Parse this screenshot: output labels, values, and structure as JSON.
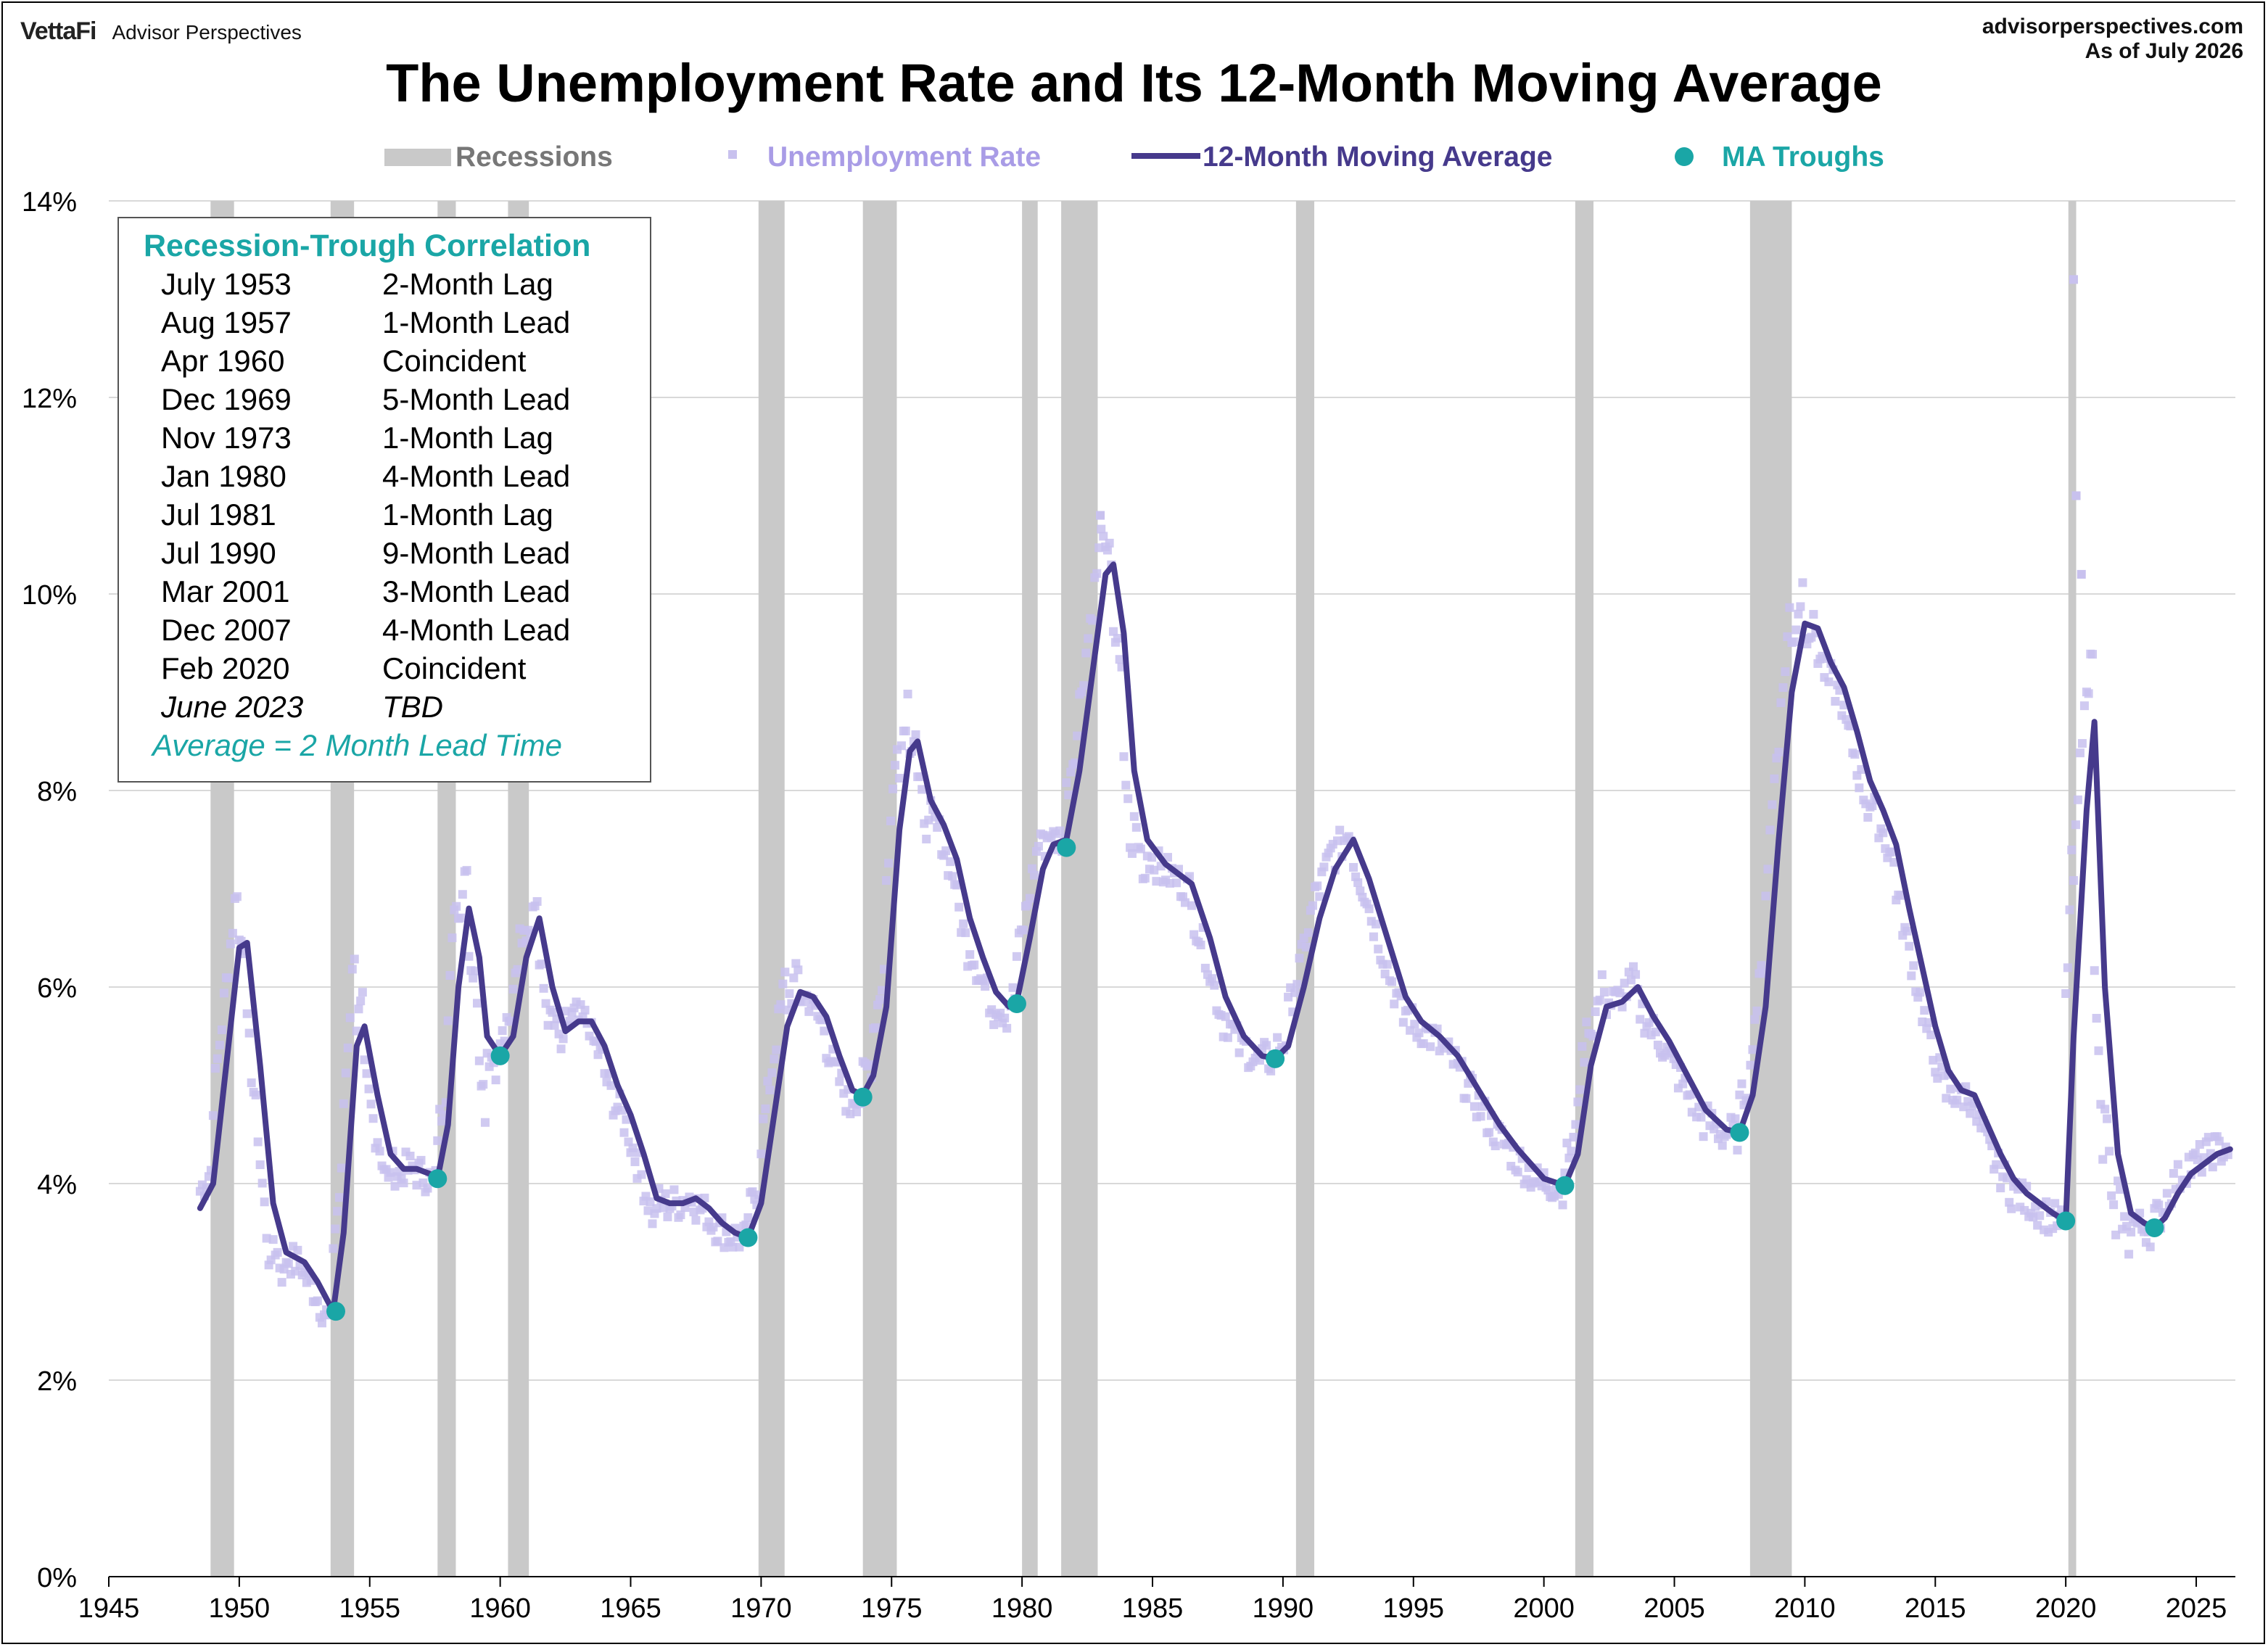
{
  "header": {
    "brand": "VettaFi",
    "brand_sub": "Advisor Perspectives",
    "site": "advisorperspectives.com",
    "as_of": "As of July 2026",
    "title": "The Unemployment Rate and Its 12-Month Moving Average"
  },
  "legend": {
    "recessions": "Recessions",
    "unemployment": "Unemployment Rate",
    "moving_average": "12-Month Moving Average",
    "troughs": "MA Troughs"
  },
  "colors": {
    "recession": "#c9c9c9",
    "unemployment": "#c8c1ee",
    "moving_average": "#463a8c",
    "trough": "#1aa6a6",
    "legend_recession_text": "#777777",
    "legend_unemployment_text": "#a99ce6",
    "grid": "#d9d9d9"
  },
  "inset": {
    "title": "Recession-Trough Correlation",
    "rows": [
      {
        "date": "July 1953",
        "relation": "2-Month Lag"
      },
      {
        "date": "Aug 1957",
        "relation": "1-Month Lead"
      },
      {
        "date": "Apr 1960",
        "relation": "Coincident"
      },
      {
        "date": "Dec 1969",
        "relation": "5-Month Lead"
      },
      {
        "date": "Nov 1973",
        "relation": "1-Month Lag"
      },
      {
        "date": "Jan 1980",
        "relation": "4-Month Lead"
      },
      {
        "date": "Jul 1981",
        "relation": "1-Month Lag"
      },
      {
        "date": "Jul 1990",
        "relation": "9-Month Lead"
      },
      {
        "date": "Mar 2001",
        "relation": "3-Month Lead"
      },
      {
        "date": "Dec 2007",
        "relation": "4-Month Lead"
      },
      {
        "date": "Feb 2020",
        "relation": "Coincident"
      },
      {
        "date": "June 2023",
        "relation": "TBD"
      }
    ],
    "footer": "Average = 2 Month Lead Time"
  },
  "chart_data": {
    "type": "line",
    "title": "The Unemployment Rate and Its 12-Month Moving Average",
    "xlabel": "",
    "ylabel": "",
    "xlim": [
      1945,
      2026.5
    ],
    "ylim": [
      0,
      14
    ],
    "x_ticks": [
      "1945",
      "1950",
      "1955",
      "1960",
      "1965",
      "1970",
      "1975",
      "1980",
      "1985",
      "1990",
      "1995",
      "2000",
      "2005",
      "2010",
      "2015",
      "2020",
      "2025"
    ],
    "y_ticks": [
      "0%",
      "2%",
      "4%",
      "6%",
      "8%",
      "10%",
      "12%",
      "14%"
    ],
    "grid": "horizontal",
    "legend_position": "top",
    "recessions": [
      [
        1948.9,
        1949.8
      ],
      [
        1953.5,
        1954.4
      ],
      [
        1957.6,
        1958.3
      ],
      [
        1960.3,
        1961.1
      ],
      [
        1969.9,
        1970.9
      ],
      [
        1973.9,
        1975.2
      ],
      [
        1980.0,
        1980.6
      ],
      [
        1981.5,
        1982.9
      ],
      [
        1990.5,
        1991.2
      ],
      [
        2001.2,
        2001.9
      ],
      [
        2007.9,
        2009.5
      ],
      [
        2020.1,
        2020.4
      ]
    ],
    "series": [
      {
        "name": "12-Month Moving Average",
        "points": [
          [
            1948.5,
            3.75
          ],
          [
            1949.0,
            4.0
          ],
          [
            1949.5,
            5.2
          ],
          [
            1950.0,
            6.4
          ],
          [
            1950.3,
            6.45
          ],
          [
            1950.8,
            5.2
          ],
          [
            1951.3,
            3.8
          ],
          [
            1951.8,
            3.3
          ],
          [
            1952.5,
            3.2
          ],
          [
            1953.0,
            3.0
          ],
          [
            1953.6,
            2.7
          ],
          [
            1954.0,
            3.5
          ],
          [
            1954.5,
            5.4
          ],
          [
            1954.8,
            5.6
          ],
          [
            1955.3,
            4.9
          ],
          [
            1955.8,
            4.3
          ],
          [
            1956.3,
            4.15
          ],
          [
            1956.8,
            4.15
          ],
          [
            1957.3,
            4.1
          ],
          [
            1957.6,
            4.05
          ],
          [
            1958.0,
            4.6
          ],
          [
            1958.4,
            6.0
          ],
          [
            1958.8,
            6.8
          ],
          [
            1959.2,
            6.3
          ],
          [
            1959.5,
            5.5
          ],
          [
            1960.0,
            5.3
          ],
          [
            1960.5,
            5.5
          ],
          [
            1961.0,
            6.3
          ],
          [
            1961.5,
            6.7
          ],
          [
            1962.0,
            6.0
          ],
          [
            1962.5,
            5.55
          ],
          [
            1963.0,
            5.65
          ],
          [
            1963.5,
            5.65
          ],
          [
            1964.0,
            5.4
          ],
          [
            1964.5,
            5.0
          ],
          [
            1965.0,
            4.7
          ],
          [
            1965.5,
            4.3
          ],
          [
            1966.0,
            3.85
          ],
          [
            1966.5,
            3.8
          ],
          [
            1967.0,
            3.8
          ],
          [
            1967.5,
            3.85
          ],
          [
            1968.0,
            3.75
          ],
          [
            1968.5,
            3.6
          ],
          [
            1969.0,
            3.5
          ],
          [
            1969.5,
            3.45
          ],
          [
            1970.0,
            3.8
          ],
          [
            1970.5,
            4.7
          ],
          [
            1971.0,
            5.6
          ],
          [
            1971.5,
            5.95
          ],
          [
            1972.0,
            5.9
          ],
          [
            1972.5,
            5.7
          ],
          [
            1973.0,
            5.3
          ],
          [
            1973.5,
            4.95
          ],
          [
            1973.9,
            4.9
          ],
          [
            1974.3,
            5.1
          ],
          [
            1974.8,
            5.8
          ],
          [
            1975.3,
            7.6
          ],
          [
            1975.7,
            8.4
          ],
          [
            1976.0,
            8.5
          ],
          [
            1976.5,
            7.9
          ],
          [
            1977.0,
            7.65
          ],
          [
            1977.5,
            7.3
          ],
          [
            1978.0,
            6.7
          ],
          [
            1978.5,
            6.3
          ],
          [
            1979.0,
            5.95
          ],
          [
            1979.5,
            5.8
          ],
          [
            1979.8,
            5.85
          ],
          [
            1980.3,
            6.5
          ],
          [
            1980.8,
            7.2
          ],
          [
            1981.2,
            7.45
          ],
          [
            1981.7,
            7.5
          ],
          [
            1982.2,
            8.2
          ],
          [
            1982.7,
            9.2
          ],
          [
            1983.2,
            10.2
          ],
          [
            1983.5,
            10.3
          ],
          [
            1983.9,
            9.6
          ],
          [
            1984.3,
            8.2
          ],
          [
            1984.8,
            7.5
          ],
          [
            1985.5,
            7.25
          ],
          [
            1986.5,
            7.05
          ],
          [
            1987.2,
            6.5
          ],
          [
            1987.8,
            5.9
          ],
          [
            1988.5,
            5.5
          ],
          [
            1989.2,
            5.3
          ],
          [
            1989.7,
            5.27
          ],
          [
            1990.2,
            5.4
          ],
          [
            1990.8,
            6.0
          ],
          [
            1991.4,
            6.7
          ],
          [
            1992.0,
            7.2
          ],
          [
            1992.7,
            7.5
          ],
          [
            1993.3,
            7.1
          ],
          [
            1994.0,
            6.5
          ],
          [
            1994.7,
            5.9
          ],
          [
            1995.3,
            5.65
          ],
          [
            1996.0,
            5.5
          ],
          [
            1996.7,
            5.3
          ],
          [
            1997.5,
            4.95
          ],
          [
            1998.3,
            4.6
          ],
          [
            1999.0,
            4.35
          ],
          [
            2000.0,
            4.05
          ],
          [
            2000.8,
            3.98
          ],
          [
            2001.3,
            4.3
          ],
          [
            2001.8,
            5.2
          ],
          [
            2002.4,
            5.8
          ],
          [
            2003.0,
            5.85
          ],
          [
            2003.6,
            6.0
          ],
          [
            2004.2,
            5.7
          ],
          [
            2004.8,
            5.45
          ],
          [
            2005.5,
            5.1
          ],
          [
            2006.2,
            4.75
          ],
          [
            2007.0,
            4.55
          ],
          [
            2007.5,
            4.52
          ],
          [
            2008.0,
            4.9
          ],
          [
            2008.5,
            5.8
          ],
          [
            2009.0,
            7.5
          ],
          [
            2009.5,
            9.0
          ],
          [
            2010.0,
            9.7
          ],
          [
            2010.5,
            9.65
          ],
          [
            2011.0,
            9.3
          ],
          [
            2011.5,
            9.05
          ],
          [
            2012.0,
            8.6
          ],
          [
            2012.5,
            8.1
          ],
          [
            2013.0,
            7.8
          ],
          [
            2013.5,
            7.45
          ],
          [
            2014.0,
            6.8
          ],
          [
            2014.5,
            6.2
          ],
          [
            2015.0,
            5.6
          ],
          [
            2015.5,
            5.15
          ],
          [
            2016.0,
            4.95
          ],
          [
            2016.5,
            4.9
          ],
          [
            2017.0,
            4.6
          ],
          [
            2017.5,
            4.3
          ],
          [
            2018.0,
            4.05
          ],
          [
            2018.5,
            3.9
          ],
          [
            2019.0,
            3.8
          ],
          [
            2019.5,
            3.7
          ],
          [
            2020.0,
            3.62
          ],
          [
            2020.3,
            5.5
          ],
          [
            2020.8,
            7.8
          ],
          [
            2021.1,
            8.7
          ],
          [
            2021.5,
            6.0
          ],
          [
            2022.0,
            4.3
          ],
          [
            2022.5,
            3.7
          ],
          [
            2023.0,
            3.6
          ],
          [
            2023.4,
            3.55
          ],
          [
            2023.8,
            3.65
          ],
          [
            2024.3,
            3.9
          ],
          [
            2024.8,
            4.1
          ],
          [
            2025.3,
            4.2
          ],
          [
            2025.8,
            4.3
          ],
          [
            2026.3,
            4.35
          ]
        ]
      },
      {
        "name": "MA Troughs",
        "points": [
          [
            1953.7,
            2.7
          ],
          [
            1957.6,
            4.05
          ],
          [
            1960.0,
            5.3
          ],
          [
            1969.5,
            3.45
          ],
          [
            1973.9,
            4.88
          ],
          [
            1979.8,
            5.83
          ],
          [
            1981.7,
            7.42
          ],
          [
            1989.7,
            5.27
          ],
          [
            2000.8,
            3.98
          ],
          [
            2007.5,
            4.52
          ],
          [
            2020.0,
            3.62
          ],
          [
            2023.4,
            3.55
          ]
        ]
      }
    ],
    "unemployment_outliers": [
      [
        2020.3,
        13.2
      ],
      [
        2020.4,
        11.0
      ],
      [
        2020.6,
        10.2
      ],
      [
        1983.0,
        10.8
      ]
    ]
  }
}
